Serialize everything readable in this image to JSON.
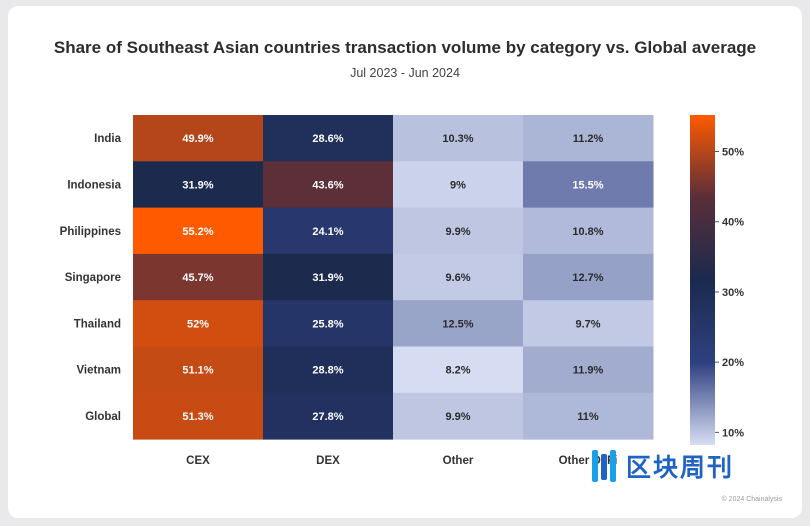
{
  "chart_data": {
    "type": "heatmap",
    "title": "Share of Southeast Asian countries transaction volume by category vs. Global average",
    "subtitle": "Jul 2023 - Jun 2024",
    "rows": [
      "India",
      "Indonesia",
      "Philippines",
      "Singapore",
      "Thailand",
      "Vietnam",
      "Global"
    ],
    "columns": [
      "CEX",
      "DEX",
      "Other",
      "Other DeFi"
    ],
    "values": [
      [
        49.9,
        28.6,
        10.3,
        11.2
      ],
      [
        31.9,
        43.6,
        9,
        15.5
      ],
      [
        55.2,
        24.1,
        9.9,
        10.8
      ],
      [
        45.7,
        31.9,
        9.6,
        12.7
      ],
      [
        52,
        25.8,
        12.5,
        9.7
      ],
      [
        51.1,
        28.8,
        8.2,
        11.9
      ],
      [
        51.3,
        27.8,
        9.9,
        11
      ]
    ],
    "cell_labels": [
      [
        "49.9%",
        "28.6%",
        "10.3%",
        "11.2%"
      ],
      [
        "31.9%",
        "43.6%",
        "9%",
        "15.5%"
      ],
      [
        "55.2%",
        "24.1%",
        "9.9%",
        "10.8%"
      ],
      [
        "45.7%",
        "31.9%",
        "9.6%",
        "12.7%"
      ],
      [
        "52%",
        "25.8%",
        "12.5%",
        "9.7%"
      ],
      [
        "51.1%",
        "28.8%",
        "8.2%",
        "11.9%"
      ],
      [
        "51.3%",
        "27.8%",
        "9.9%",
        "11%"
      ]
    ],
    "colorbar": {
      "range": [
        8.2,
        55.2
      ],
      "ticks": [
        10,
        20,
        30,
        40,
        50
      ],
      "tick_labels": [
        "10%",
        "20%",
        "30%",
        "40%",
        "50%"
      ],
      "colors": [
        "#d6ddf3",
        "#2f4080",
        "#1b2a4e",
        "#5a2e3a",
        "#ff5a00"
      ]
    }
  },
  "watermark_text": "区块周刊",
  "credit": "© 2024 Chainalysis"
}
